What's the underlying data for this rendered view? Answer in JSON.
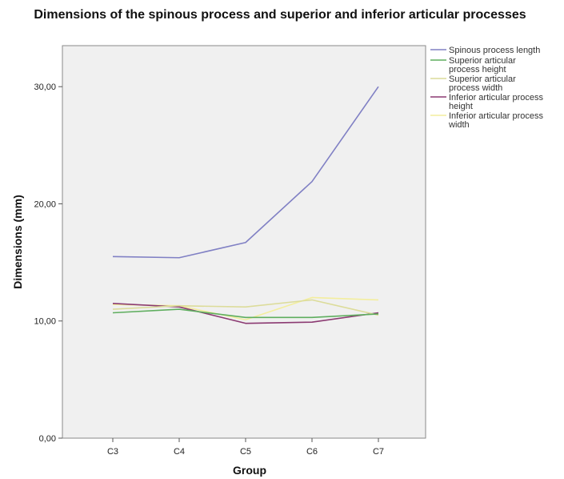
{
  "chart_data": {
    "type": "line",
    "title": "Dimensions of the spinous process and superior and inferior articular processes",
    "xlabel": "Group",
    "ylabel": "Dimensions (mm)",
    "categories": [
      "C3",
      "C4",
      "C5",
      "C6",
      "C7"
    ],
    "ylim": [
      0,
      33.5
    ],
    "yticks": [
      "0,00",
      "10,00",
      "20,00",
      "30,00"
    ],
    "ytick_values": [
      0,
      10,
      20,
      30
    ],
    "grid": false,
    "legend_position": "right",
    "series": [
      {
        "name": "Spinous process length",
        "color": "#8080c4",
        "values": [
          15.5,
          15.4,
          16.7,
          21.9,
          30.0
        ]
      },
      {
        "name": "Superior articular process height",
        "color": "#5fae5f",
        "values": [
          10.7,
          11.0,
          10.3,
          10.3,
          10.6
        ]
      },
      {
        "name": "Superior articular process width",
        "color": "#dcdc9a",
        "values": [
          11.0,
          11.3,
          11.2,
          11.8,
          10.5
        ]
      },
      {
        "name": "Inferior articular process height",
        "color": "#8b3a72",
        "values": [
          11.5,
          11.2,
          9.8,
          9.9,
          10.7
        ]
      },
      {
        "name": "Inferior articular process width",
        "color": "#f3ee9e",
        "values": [
          11.4,
          11.3,
          10.1,
          12.0,
          11.8
        ]
      }
    ]
  }
}
